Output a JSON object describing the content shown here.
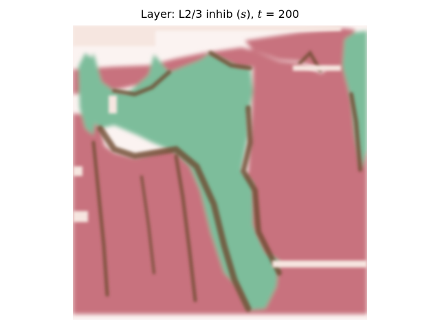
{
  "chart_data": {
    "type": "heatmap",
    "title": {
      "prefix": "Layer: L2/3 inhib (",
      "var": "s",
      "mid": "), ",
      "t_sym": "t",
      "eq": " = 200"
    },
    "axes_visible": false,
    "grid": false,
    "legend": "none",
    "colors": {
      "background": "#fbf3f1",
      "pink": "#c8727e",
      "green": "#7dbd9b",
      "dark": "#6e4a30",
      "light": "#f6e6e0"
    }
  }
}
